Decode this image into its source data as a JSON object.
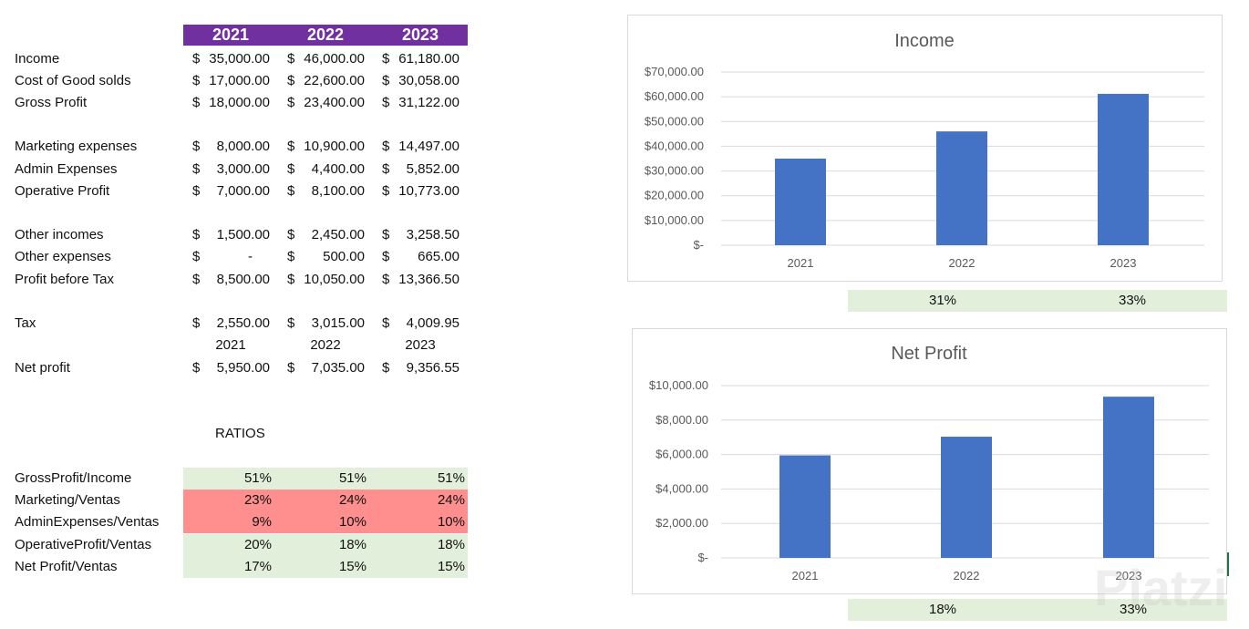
{
  "years": [
    "2021",
    "2022",
    "2023"
  ],
  "rows": [
    {
      "label": "Income",
      "values": [
        "35,000.00",
        "46,000.00",
        "61,180.00"
      ]
    },
    {
      "label": "Cost of Good solds",
      "values": [
        "17,000.00",
        "22,600.00",
        "30,058.00"
      ]
    },
    {
      "label": "Gross Profit",
      "values": [
        "18,000.00",
        "23,400.00",
        "31,122.00"
      ]
    },
    {
      "label": "Marketing expenses",
      "values": [
        "8,000.00",
        "10,900.00",
        "14,497.00"
      ]
    },
    {
      "label": "Admin Expenses",
      "values": [
        "3,000.00",
        "4,400.00",
        "5,852.00"
      ]
    },
    {
      "label": "Operative Profit",
      "values": [
        "7,000.00",
        "8,100.00",
        "10,773.00"
      ]
    },
    {
      "label": "Other incomes",
      "values": [
        "1,500.00",
        "2,450.00",
        "3,258.50"
      ]
    },
    {
      "label": "Other expenses",
      "values": [
        "-",
        "500.00",
        "665.00"
      ]
    },
    {
      "label": "Profit before Tax",
      "values": [
        "8,500.00",
        "10,050.00",
        "13,366.50"
      ]
    },
    {
      "label": "Tax",
      "values": [
        "2,550.00",
        "3,015.00",
        "4,009.95"
      ]
    },
    {
      "label": "Net profit",
      "values": [
        "5,950.00",
        "7,035.00",
        "9,356.55"
      ]
    }
  ],
  "currency": "$",
  "ratios_title": "RATIOS",
  "ratios": [
    {
      "label": "GrossProfit/Income",
      "values": [
        "51%",
        "51%",
        "51%"
      ],
      "status": "good"
    },
    {
      "label": "Marketing/Ventas",
      "values": [
        "23%",
        "24%",
        "24%"
      ],
      "status": "bad"
    },
    {
      "label": "AdminExpenses/Ventas",
      "values": [
        "9%",
        "10%",
        "10%"
      ],
      "status": "bad"
    },
    {
      "label": "OperativeProfit/Ventas",
      "values": [
        "20%",
        "18%",
        "18%"
      ],
      "status": "good"
    },
    {
      "label": "Net Profit/Ventas",
      "values": [
        "17%",
        "15%",
        "15%"
      ],
      "status": "good"
    }
  ],
  "colors": {
    "header": "#7030a0",
    "good": "#e2efda",
    "bad": "#ff8f8f",
    "bar": "#4472c4"
  },
  "chart_data": [
    {
      "type": "bar",
      "title": "Income",
      "categories": [
        "2021",
        "2022",
        "2023"
      ],
      "values": [
        35000,
        46000,
        61180
      ],
      "ylim": [
        0,
        70000
      ],
      "yticks": [
        "$-",
        "$10,000.00",
        "$20,000.00",
        "$30,000.00",
        "$40,000.00",
        "$50,000.00",
        "$60,000.00",
        "$70,000.00"
      ],
      "growth": [
        "31%",
        "33%"
      ]
    },
    {
      "type": "bar",
      "title": "Net Profit",
      "categories": [
        "2021",
        "2022",
        "2023"
      ],
      "values": [
        5950,
        7035,
        9356.55
      ],
      "ylim": [
        0,
        10000
      ],
      "yticks": [
        "$-",
        "$2,000.00",
        "$4,000.00",
        "$6,000.00",
        "$8,000.00",
        "$10,000.00"
      ],
      "growth": [
        "18%",
        "33%"
      ]
    }
  ],
  "watermark": "Platzi"
}
